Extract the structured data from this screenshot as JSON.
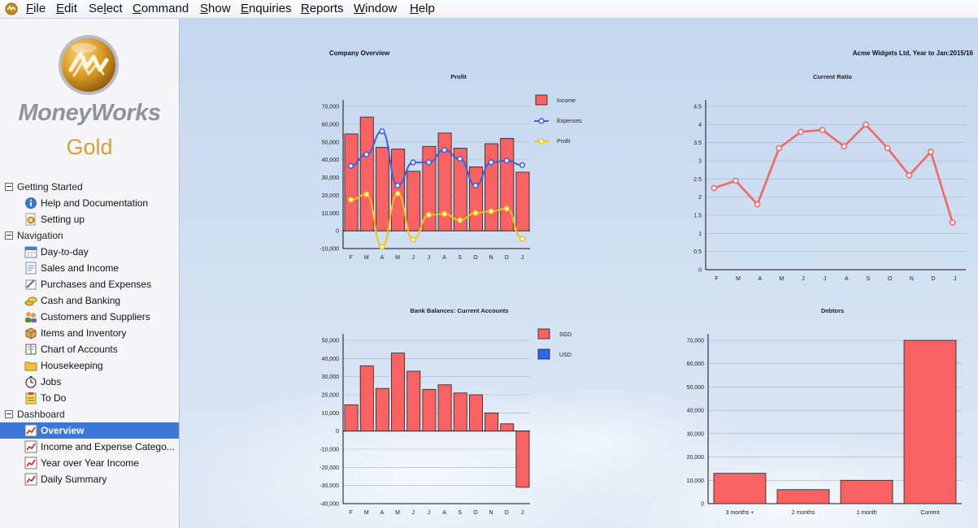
{
  "menu": {
    "items": [
      {
        "u": "F",
        "rest": "ile"
      },
      {
        "u": "E",
        "rest": "dit"
      },
      {
        "pre": "Se",
        "u": "l",
        "rest": "ect"
      },
      {
        "u": "C",
        "rest": "ommand"
      },
      {
        "u": "S",
        "rest": "how"
      },
      {
        "u": "E",
        "rest": "nquiries"
      },
      {
        "u": "R",
        "rest": "eports"
      },
      {
        "u": "W",
        "rest": "indow"
      },
      {
        "u": "H",
        "rest": "elp"
      }
    ]
  },
  "brand": {
    "name": "MoneyWorks",
    "edition": "Gold"
  },
  "sidebar": {
    "getting_started": {
      "label": "Getting Started",
      "items": [
        {
          "label": "Help and Documentation",
          "icon": "info-icon"
        },
        {
          "label": "Setting up",
          "icon": "setup-icon"
        }
      ]
    },
    "navigation": {
      "label": "Navigation",
      "items": [
        {
          "label": "Day-to-day",
          "icon": "calendar-icon"
        },
        {
          "label": "Sales and Income",
          "icon": "invoice-icon"
        },
        {
          "label": "Purchases and Expenses",
          "icon": "purchase-icon"
        },
        {
          "label": "Cash and Banking",
          "icon": "coins-icon"
        },
        {
          "label": "Customers and Suppliers",
          "icon": "people-icon"
        },
        {
          "label": "Items and Inventory",
          "icon": "box-icon"
        },
        {
          "label": "Chart of Accounts",
          "icon": "ledger-icon"
        },
        {
          "label": "Housekeeping",
          "icon": "folder-icon"
        },
        {
          "label": "Jobs",
          "icon": "stopwatch-icon"
        },
        {
          "label": "To Do",
          "icon": "todo-icon"
        }
      ]
    },
    "dashboard": {
      "label": "Dashboard",
      "items": [
        {
          "label": "Overview",
          "icon": "chart-icon",
          "selected": true
        },
        {
          "label": "Income and Expense Catego...",
          "icon": "chart-icon"
        },
        {
          "label": "Year over Year Income",
          "icon": "chart-icon"
        },
        {
          "label": "Daily Summary",
          "icon": "chart-icon"
        }
      ]
    }
  },
  "main": {
    "title": "Company Overview",
    "subtitle": "Acme Widgets Ltd, Year to Jan:2015/16"
  },
  "colors": {
    "bar": "#f86262",
    "expenses": "#3b5fe0",
    "profit": "#f5c20c",
    "ratio": "#ef6868",
    "usd": "#3366ee",
    "selection": "#3b78d8"
  },
  "chart_data": [
    {
      "type": "bar",
      "title": "Profit",
      "categories": [
        "F",
        "M",
        "A",
        "M",
        "J",
        "J",
        "A",
        "S",
        "O",
        "N",
        "D",
        "J"
      ],
      "ylim": [
        -10000,
        70000
      ],
      "yticks": [
        "-10,000",
        "0",
        "10,000",
        "20,000",
        "30,000",
        "40,000",
        "50,000",
        "60,000",
        "70,000"
      ],
      "legend": "right",
      "series": [
        {
          "name": "Income",
          "kind": "bar",
          "values": [
            54500,
            64000,
            47000,
            46000,
            33500,
            47500,
            55000,
            46500,
            36000,
            49000,
            52000,
            33000
          ]
        },
        {
          "name": "Expenses",
          "kind": "line",
          "values": [
            36500,
            43000,
            56000,
            25500,
            38500,
            38500,
            45500,
            40500,
            25500,
            38500,
            39500,
            37000
          ]
        },
        {
          "name": "Profit",
          "kind": "line",
          "values": [
            17500,
            20500,
            -9000,
            21000,
            -5000,
            9000,
            9500,
            6000,
            10000,
            11000,
            12500,
            -4500
          ]
        }
      ]
    },
    {
      "type": "line",
      "title": "Current Ratio",
      "categories": [
        "F",
        "M",
        "A",
        "M",
        "J",
        "J",
        "A",
        "S",
        "O",
        "N",
        "D",
        "J"
      ],
      "ylim": [
        0,
        4.5
      ],
      "yticks": [
        "0",
        "0.5",
        "1",
        "1.5",
        "2",
        "2.5",
        "3",
        "3.5",
        "4",
        "4.5"
      ],
      "series": [
        {
          "values": [
            2.25,
            2.45,
            1.8,
            3.35,
            3.8,
            3.85,
            3.4,
            4.0,
            3.35,
            2.6,
            3.25,
            1.3
          ]
        }
      ]
    },
    {
      "type": "bar",
      "title": "Bank Balances: Current Accounts",
      "categories": [
        "F",
        "M",
        "A",
        "M",
        "J",
        "J",
        "A",
        "S",
        "O",
        "N",
        "D",
        "J"
      ],
      "ylim": [
        -40000,
        50000
      ],
      "yticks": [
        "-40,000",
        "-30,000",
        "-20,000",
        "-10,000",
        "0",
        "10,000",
        "20,000",
        "30,000",
        "40,000",
        "50,000"
      ],
      "legend": "right",
      "series": [
        {
          "name": "SGD",
          "values": [
            14500,
            36000,
            23500,
            43000,
            33000,
            23000,
            25500,
            21000,
            20000,
            10000,
            4000,
            -31000
          ]
        },
        {
          "name": "USD",
          "values": [
            0,
            0,
            0,
            0,
            0,
            0,
            0,
            0,
            0,
            0,
            0,
            0
          ]
        }
      ]
    },
    {
      "type": "bar",
      "title": "Debtors",
      "categories": [
        "3 months +",
        "2 months",
        "1 month",
        "Current"
      ],
      "ylim": [
        0,
        70000
      ],
      "yticks": [
        "0",
        "10,000",
        "20,000",
        "30,000",
        "40,000",
        "50,000",
        "60,000",
        "70,000"
      ],
      "series": [
        {
          "values": [
            13000,
            6000,
            10000,
            70000
          ]
        }
      ]
    }
  ]
}
